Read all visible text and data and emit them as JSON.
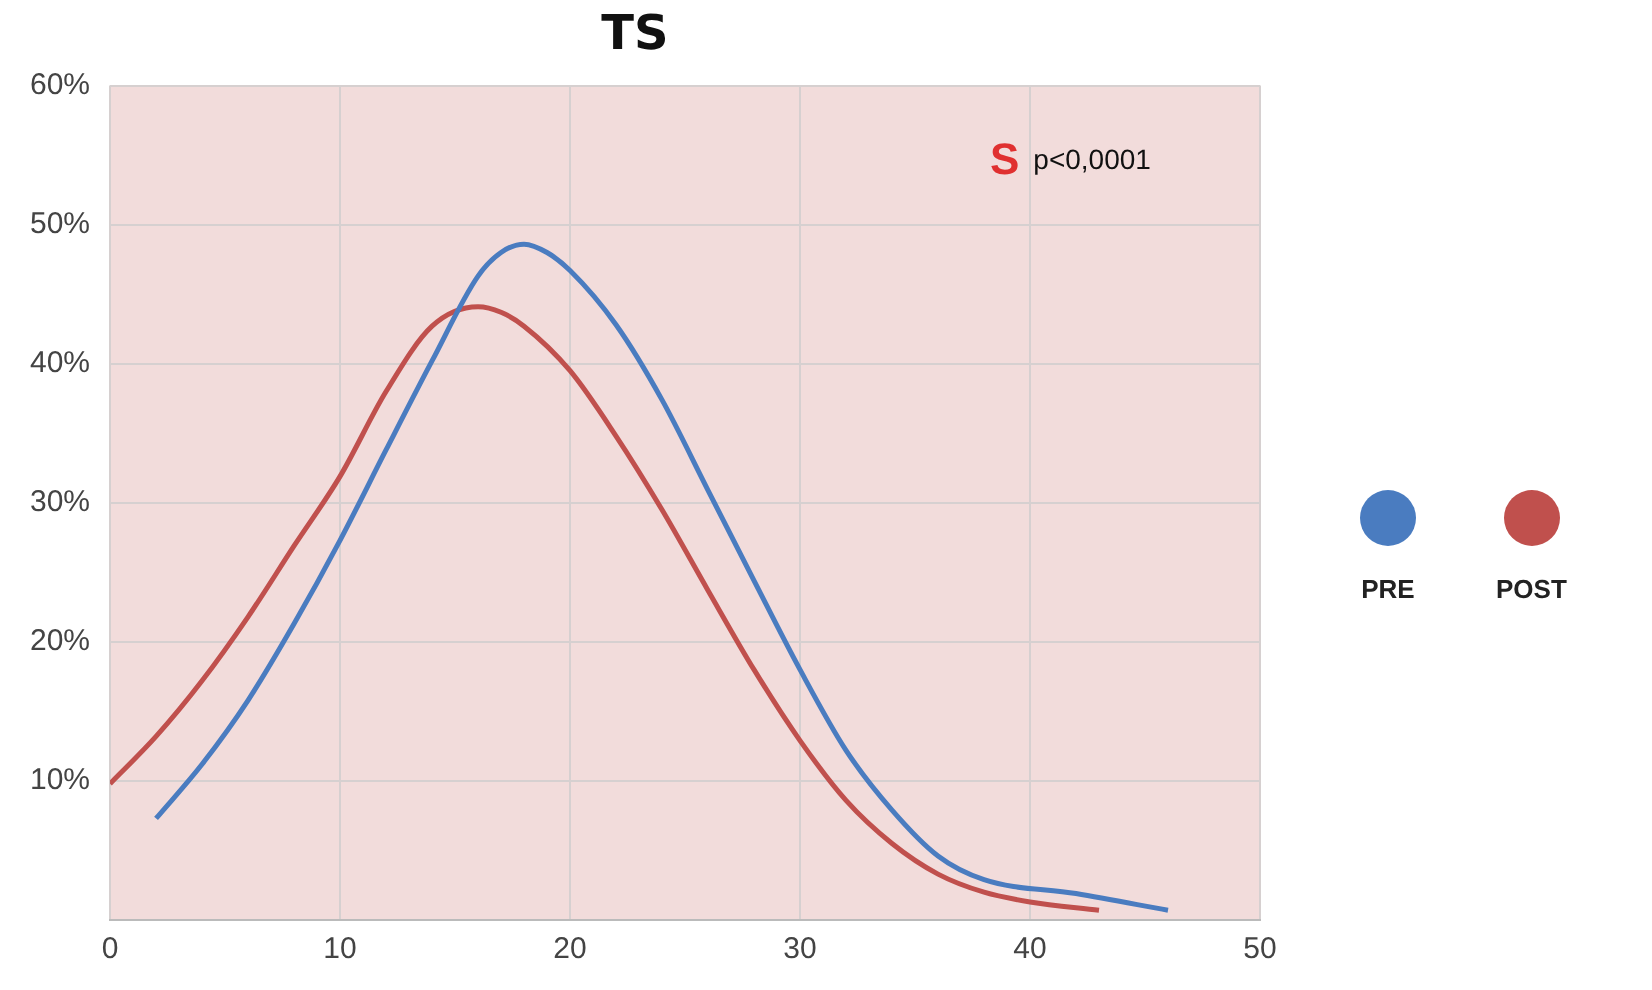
{
  "chart_data": {
    "type": "line",
    "title": "TS",
    "xlim": [
      0,
      50
    ],
    "xticks": [
      0,
      10,
      20,
      30,
      40,
      50
    ],
    "ylim": [
      0,
      60
    ],
    "yticks": [
      {
        "value": 0,
        "label": null
      },
      {
        "value": 10,
        "label": "10%"
      },
      {
        "value": 20,
        "label": "20%"
      },
      {
        "value": 30,
        "label": "30%"
      },
      {
        "value": 40,
        "label": "40%"
      },
      {
        "value": 50,
        "label": "50%"
      },
      {
        "value": 60,
        "label": "60%"
      }
    ],
    "grid": true,
    "legend": "right",
    "marker": "none",
    "line_style": "solid",
    "annotations": [
      "S",
      "p<0,0001"
    ],
    "series": [
      {
        "name": "PRE",
        "color": "#4a7cc0",
        "x": [
          2,
          4,
          6,
          8,
          10,
          12,
          14,
          16,
          17,
          18,
          19,
          20,
          22,
          24,
          26,
          28,
          30,
          32,
          34,
          36,
          38,
          42,
          46
        ],
        "values": [
          7.3,
          11.2,
          15.8,
          21.3,
          27.3,
          33.8,
          40.2,
          46.3,
          48,
          48.6,
          48,
          46.7,
          42.8,
          37.4,
          30.9,
          24.4,
          18,
          12.2,
          7.9,
          4.6,
          2.9,
          1.9,
          0.7
        ]
      },
      {
        "name": "POST",
        "color": "#c0504d",
        "x": [
          0,
          2,
          4,
          6,
          8,
          10,
          12,
          14,
          16,
          17,
          18,
          20,
          22,
          24,
          26,
          28,
          30,
          32,
          34,
          36,
          38,
          40,
          43
        ],
        "values": [
          9.8,
          13.2,
          17.2,
          21.8,
          26.9,
          31.9,
          38,
          42.7,
          44.1,
          43.7,
          42.7,
          39.5,
          34.8,
          29.5,
          23.7,
          18,
          12.9,
          8.6,
          5.5,
          3.3,
          2,
          1.3,
          0.7
        ]
      }
    ]
  }
}
